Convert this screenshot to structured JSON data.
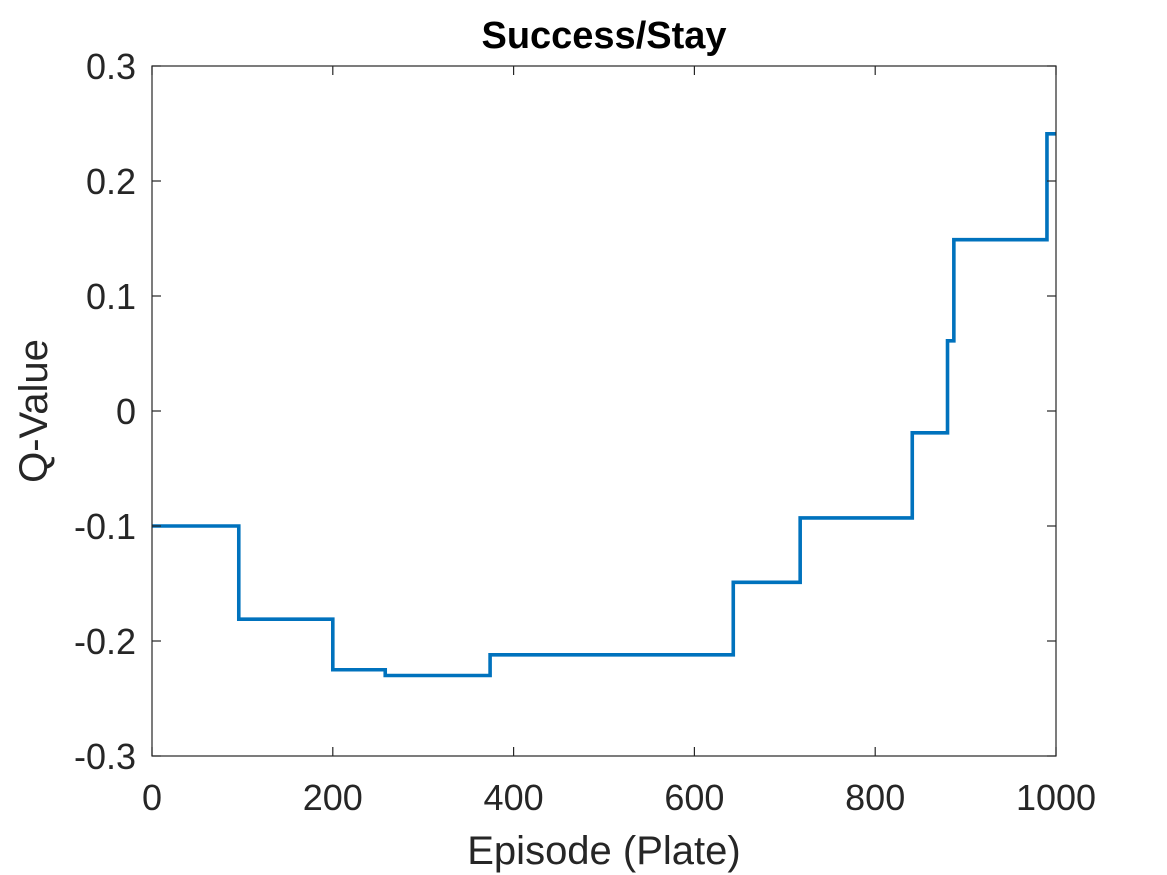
{
  "chart_data": {
    "type": "line",
    "title": "Success/Stay",
    "xlabel": "Episode (Plate)",
    "ylabel": "Q-Value",
    "xlim": [
      0,
      1000
    ],
    "ylim": [
      -0.3,
      0.3
    ],
    "xticks": [
      0,
      200,
      400,
      600,
      800,
      1000
    ],
    "xtick_labels": [
      "0",
      "200",
      "400",
      "600",
      "800",
      "1000"
    ],
    "yticks": [
      -0.3,
      -0.2,
      -0.1,
      0,
      0.1,
      0.2,
      0.3
    ],
    "ytick_labels": [
      "-0.3",
      "-0.2",
      "-0.1",
      "0",
      "0.1",
      "0.2",
      "0.3"
    ],
    "grid": false,
    "step": true,
    "series": [
      {
        "color": "#0072BD",
        "x": [
          0,
          96,
          200,
          258,
          374,
          643,
          717,
          841,
          880,
          887,
          990,
          1000
        ],
        "y": [
          -0.1,
          -0.181,
          -0.225,
          -0.23,
          -0.212,
          -0.149,
          -0.093,
          -0.019,
          0.061,
          0.149,
          0.241,
          0.241
        ]
      }
    ]
  }
}
